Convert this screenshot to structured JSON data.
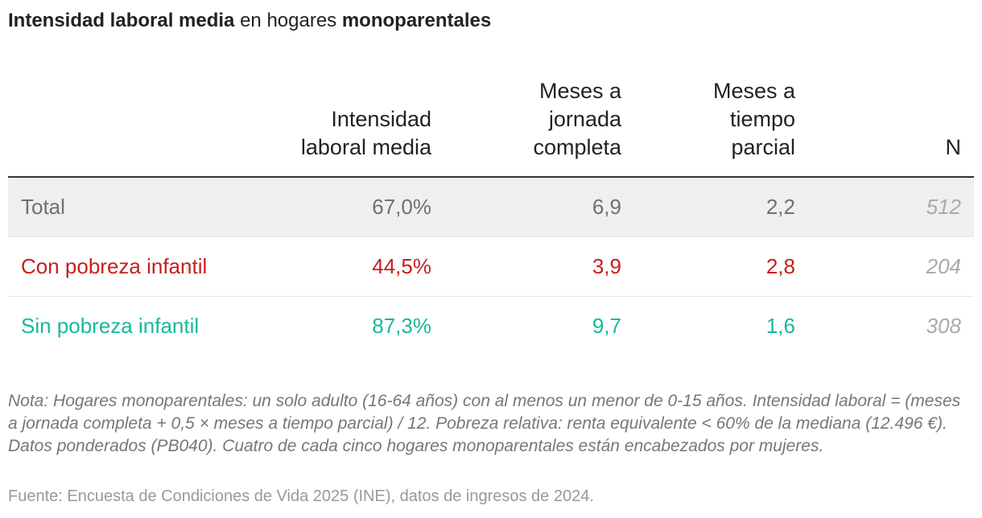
{
  "title": {
    "bold1": "Intensidad laboral media",
    "mid": " en hogares ",
    "bold2": "monoparentales"
  },
  "colors": {
    "total": "#707070",
    "con": "#c71e1d",
    "sin": "#18b89c"
  },
  "chart_data": {
    "type": "table",
    "columns": [
      "",
      "Intensidad laboral media",
      "Meses a jornada completa",
      "Meses a tiempo parcial",
      "N"
    ],
    "rows": [
      {
        "label": "Total",
        "values": [
          "67,0%",
          "6,9",
          "2,2",
          "512"
        ]
      },
      {
        "label": "Con pobreza infantil",
        "values": [
          "44,5%",
          "3,9",
          "2,8",
          "204"
        ]
      },
      {
        "label": "Sin pobreza infantil",
        "values": [
          "87,3%",
          "9,7",
          "1,6",
          "308"
        ]
      }
    ]
  },
  "note": "Nota: Hogares monoparentales: un solo adulto (16-64 años) con al menos un menor de 0-15 años. Intensidad laboral = (meses a jornada completa + 0,5 × meses a tiempo parcial) / 12. Pobreza relativa: renta equivalente < 60% de la mediana (12.496 €). Datos ponderados (PB040). Cuatro de cada cinco hogares monoparentales están encabezados por mujeres.",
  "source": "Fuente: Encuesta de Condiciones de Vida 2025 (INE), datos de ingresos de 2024."
}
